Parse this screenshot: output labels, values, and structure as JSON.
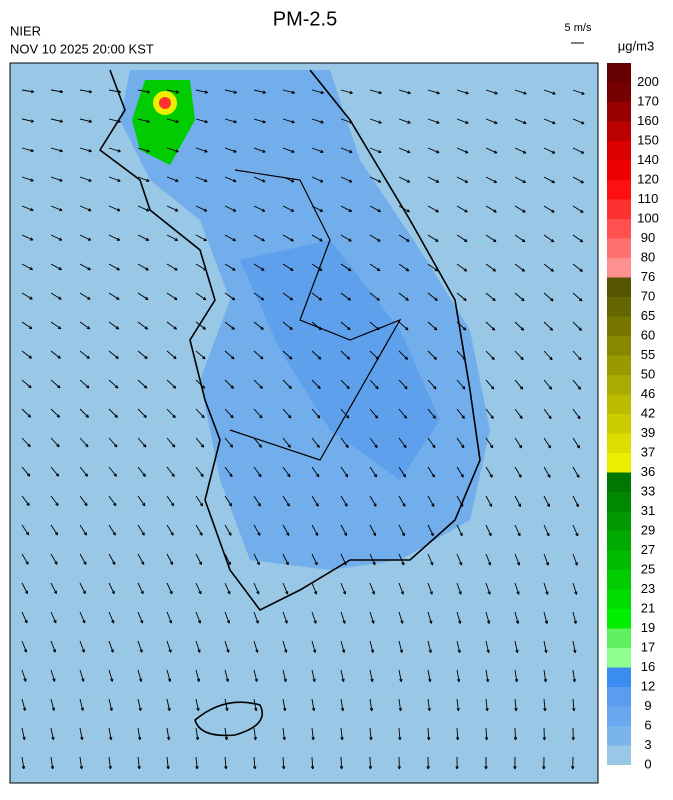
{
  "header": {
    "title": "PM-2.5",
    "source": "NIER",
    "time": "NOV 10 2025 20:00 KST",
    "wind_scale": "5 m/s"
  },
  "colorbar": {
    "unit": "μg/m3",
    "ticks": [
      0,
      3,
      6,
      9,
      12,
      16,
      17,
      19,
      21,
      23,
      25,
      27,
      29,
      31,
      33,
      36,
      37,
      39,
      42,
      46,
      50,
      55,
      60,
      65,
      70,
      76,
      80,
      90,
      100,
      110,
      120,
      140,
      150,
      160,
      170,
      200
    ],
    "colors": [
      "#98c8e6",
      "#7ab4ea",
      "#69a8ee",
      "#5a9cee",
      "#3a8cf0",
      "#90ff90",
      "#60f060",
      "#00ee00",
      "#00dd00",
      "#00cc00",
      "#00bb00",
      "#00aa00",
      "#009900",
      "#008800",
      "#007700",
      "#eeee00",
      "#dddd00",
      "#cccc00",
      "#bbbb00",
      "#aaaa00",
      "#999900",
      "#888800",
      "#777700",
      "#666600",
      "#555500",
      "#ff9090",
      "#ff7070",
      "#ff5050",
      "#ff3030",
      "#ff1010",
      "#ee0000",
      "#dd0000",
      "#bb0000",
      "#990000",
      "#770000",
      "#660000"
    ]
  }
}
